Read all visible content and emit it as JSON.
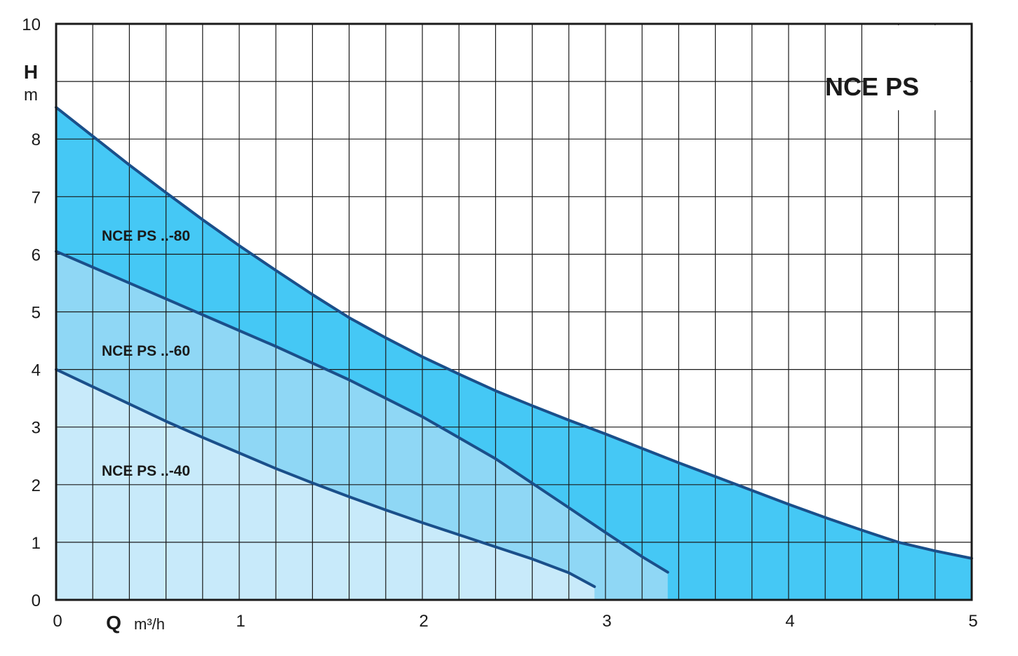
{
  "chart_data": {
    "type": "area",
    "title": "NCE PS",
    "ylabel": "H",
    "yunit": "m",
    "xlabel": "Q",
    "xunit": "m³/h",
    "xlim": [
      0,
      5
    ],
    "ylim": [
      0,
      10
    ],
    "x_ticks": [
      0,
      1,
      2,
      3,
      4,
      5
    ],
    "y_ticks": [
      0,
      1,
      2,
      3,
      4,
      5,
      6,
      7,
      8,
      10
    ],
    "grid": true,
    "series": [
      {
        "name": "NCE PS ..-80",
        "color_fill": "#45c8f5",
        "color_line": "#1a4f8a",
        "x": [
          0,
          0.2,
          0.4,
          0.6,
          0.8,
          1.0,
          1.2,
          1.4,
          1.6,
          1.8,
          2.0,
          2.2,
          2.4,
          2.6,
          2.8,
          3.0,
          3.2,
          3.4,
          3.6,
          3.8,
          4.0,
          4.2,
          4.4,
          4.6,
          4.8,
          5.0
        ],
        "y": [
          8.55,
          8.05,
          7.55,
          7.07,
          6.6,
          6.15,
          5.72,
          5.3,
          4.9,
          4.55,
          4.22,
          3.92,
          3.63,
          3.37,
          3.12,
          2.88,
          2.63,
          2.38,
          2.14,
          1.9,
          1.66,
          1.43,
          1.21,
          1.0,
          0.85,
          0.72
        ]
      },
      {
        "name": "NCE PS ..-60",
        "color_fill": "#8fd7f5",
        "color_line": "#1a4f8a",
        "x": [
          0,
          0.4,
          0.8,
          1.2,
          1.6,
          2.0,
          2.4,
          2.8,
          3.0,
          3.2,
          3.34
        ],
        "y": [
          6.05,
          5.5,
          4.95,
          4.4,
          3.82,
          3.18,
          2.45,
          1.6,
          1.17,
          0.75,
          0.48
        ]
      },
      {
        "name": "NCE PS ..-40",
        "color_fill": "#c8eafa",
        "color_line": "#1a4f8a",
        "x": [
          0,
          0.2,
          0.4,
          0.6,
          0.8,
          1.0,
          1.2,
          1.4,
          1.6,
          1.8,
          2.0,
          2.2,
          2.4,
          2.6,
          2.8,
          2.94
        ],
        "y": [
          4.0,
          3.7,
          3.4,
          3.1,
          2.82,
          2.55,
          2.28,
          2.03,
          1.79,
          1.56,
          1.34,
          1.13,
          0.92,
          0.71,
          0.47,
          0.23
        ]
      }
    ],
    "series_labels": [
      "NCE PS ..-80",
      "NCE PS ..-60",
      "NCE PS ..-40"
    ]
  }
}
